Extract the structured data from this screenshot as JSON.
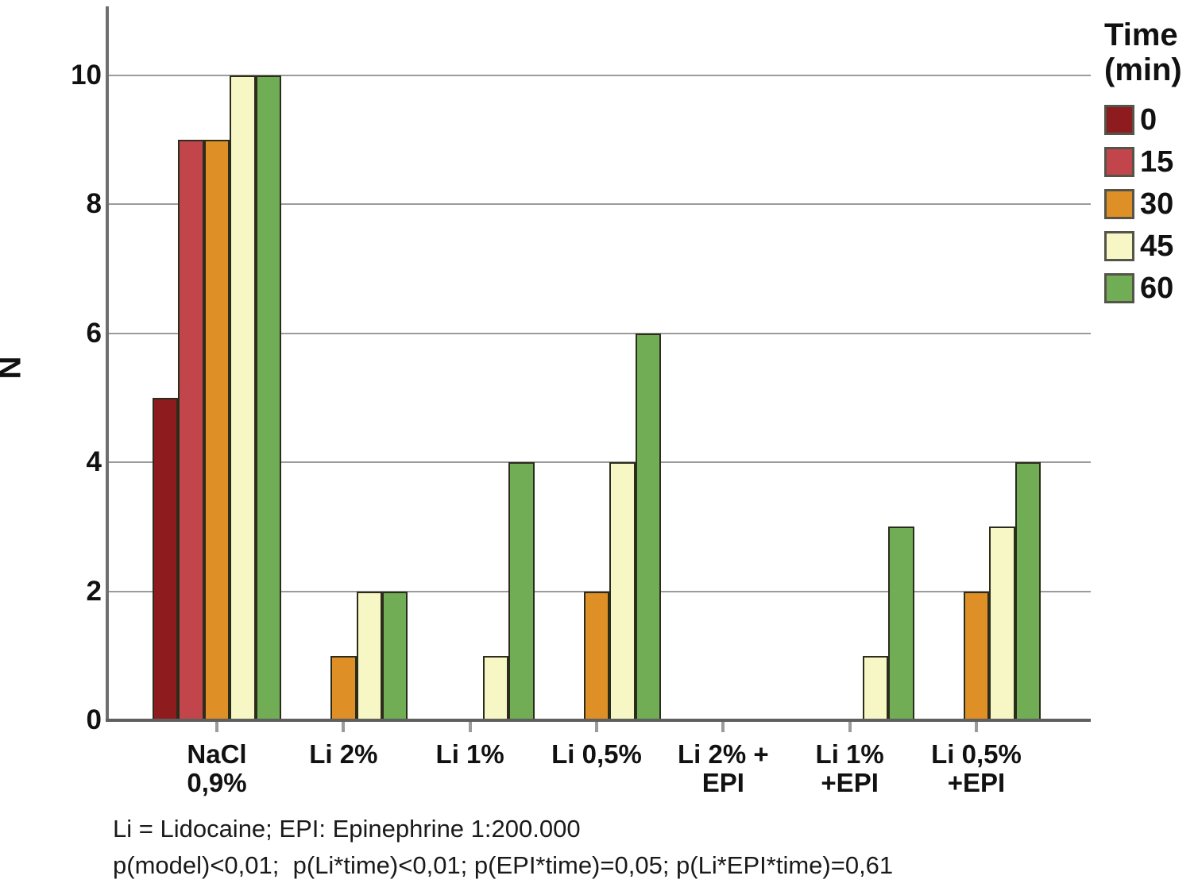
{
  "figure": {
    "y_axis_title": "N",
    "legend_title_line1": "Time",
    "legend_title_line2": "(min)",
    "footnotes": [
      "Li = Lidocaine; EPI: Epinephrine 1:200.000",
      "p(model)<0,01;  p(Li*time)<0,01; p(EPI*time)=0,05; p(Li*EPI*time)=0,61"
    ]
  },
  "colors": {
    "time_0": "#8e1c1f",
    "time_15": "#c2454c",
    "time_30": "#de9027",
    "time_45": "#f7f7c6",
    "time_60": "#70ad55",
    "bar_border": "#2c2c1d",
    "gridline": "#9b9b9b",
    "axis": "#6e6e6e",
    "text": "#111111"
  },
  "chart_data": {
    "type": "bar",
    "title": "",
    "xlabel": "",
    "ylabel": "N",
    "ylim": [
      0,
      11
    ],
    "yticks": [
      0,
      2,
      4,
      6,
      8,
      10
    ],
    "grid": "horizontal",
    "legend_title": "Time (min)",
    "legend_position": "top-right",
    "categories": [
      "NaCl 0,9%",
      "Li 2%",
      "Li 1%",
      "Li 0,5%",
      "Li 2% + EPI",
      "Li 1% +EPI",
      "Li 0,5% +EPI"
    ],
    "category_label_lines": [
      [
        "NaCl",
        "0,9%"
      ],
      [
        "Li 2%"
      ],
      [
        "Li 1%"
      ],
      [
        "Li 0,5%"
      ],
      [
        "Li 2% +",
        "EPI"
      ],
      [
        "Li 1%",
        "+EPI"
      ],
      [
        "Li 0,5%",
        "+EPI"
      ]
    ],
    "series": [
      {
        "name": "0",
        "color": "#8e1c1f",
        "values": [
          5,
          0,
          0,
          0,
          0,
          0,
          0
        ]
      },
      {
        "name": "15",
        "color": "#c2454c",
        "values": [
          9,
          0,
          0,
          0,
          0,
          0,
          0
        ]
      },
      {
        "name": "30",
        "color": "#de9027",
        "values": [
          9,
          1,
          0,
          2,
          0,
          0,
          2
        ]
      },
      {
        "name": "45",
        "color": "#f7f7c6",
        "values": [
          10,
          2,
          1,
          4,
          0,
          1,
          3
        ]
      },
      {
        "name": "60",
        "color": "#70ad55",
        "values": [
          10,
          2,
          4,
          6,
          0,
          3,
          4
        ]
      }
    ]
  }
}
